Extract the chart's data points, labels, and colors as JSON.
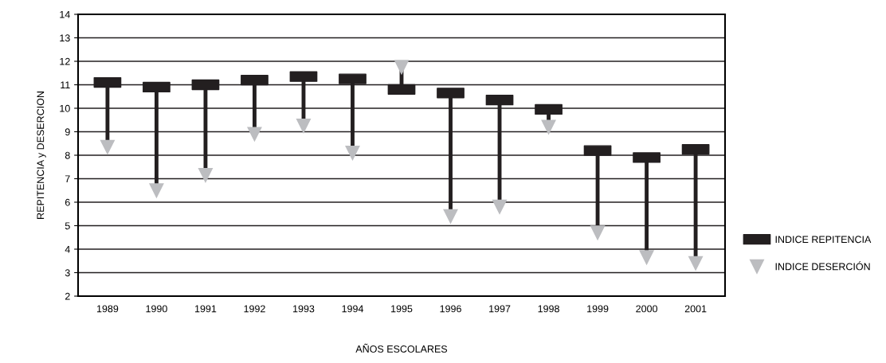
{
  "chart_data": {
    "type": "scatter",
    "xlabel": "AÑOS ESCOLARES",
    "ylabel": "REPITENCIA y DESERCION",
    "categories": [
      "1989",
      "1990",
      "1991",
      "1992",
      "1993",
      "1994",
      "1995",
      "1996",
      "1997",
      "1998",
      "1999",
      "2000",
      "2001"
    ],
    "series": [
      {
        "name": "INDICE REPITENCIA",
        "color": "#231f20",
        "marker": "square",
        "values": [
          11.1,
          10.9,
          11.0,
          11.2,
          11.35,
          11.25,
          10.8,
          10.65,
          10.35,
          9.95,
          8.2,
          7.9,
          8.25
        ]
      },
      {
        "name": "INDICE DESERCIÓN",
        "color": "#bcbdc0",
        "marker": "triangle",
        "values": [
          8.35,
          6.5,
          7.15,
          8.9,
          9.25,
          8.1,
          11.75,
          5.4,
          5.8,
          9.2,
          4.7,
          3.65,
          3.4
        ]
      }
    ],
    "ylim": [
      2,
      14
    ],
    "yticks": [
      2,
      3,
      4,
      5,
      6,
      7,
      8,
      9,
      10,
      11,
      12,
      13,
      14
    ],
    "grid": "y",
    "legend": "right"
  }
}
